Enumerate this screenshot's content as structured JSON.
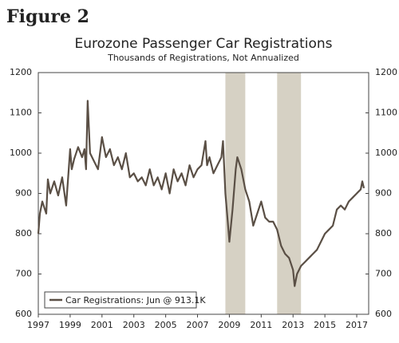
{
  "heading": "Figure 2",
  "chart_data": {
    "type": "line",
    "title": "Eurozone Passenger Car Registrations",
    "subtitle": "Thousands of Registrations, Not Annualized",
    "x": [
      1997.0,
      1997.1,
      1997.25,
      1997.5,
      1997.6,
      1997.75,
      1998.0,
      1998.25,
      1998.5,
      1998.75,
      1999.0,
      1999.1,
      1999.25,
      1999.5,
      1999.75,
      1999.9,
      2000.0,
      2000.1,
      2000.25,
      2000.5,
      2000.75,
      2001.0,
      2001.25,
      2001.5,
      2001.75,
      2002.0,
      2002.25,
      2002.5,
      2002.75,
      2003.0,
      2003.25,
      2003.5,
      2003.75,
      2004.0,
      2004.25,
      2004.5,
      2004.75,
      2005.0,
      2005.25,
      2005.5,
      2005.75,
      2006.0,
      2006.25,
      2006.5,
      2006.75,
      2007.0,
      2007.25,
      2007.5,
      2007.6,
      2007.75,
      2008.0,
      2008.25,
      2008.5,
      2008.6,
      2008.75,
      2008.9,
      2009.0,
      2009.2,
      2009.4,
      2009.5,
      2009.75,
      2010.0,
      2010.25,
      2010.5,
      2010.75,
      2011.0,
      2011.25,
      2011.5,
      2011.75,
      2012.0,
      2012.25,
      2012.5,
      2012.75,
      2013.0,
      2013.1,
      2013.25,
      2013.5,
      2013.75,
      2014.0,
      2014.25,
      2014.5,
      2014.75,
      2015.0,
      2015.25,
      2015.5,
      2015.75,
      2016.0,
      2016.25,
      2016.5,
      2016.75,
      2017.0,
      2017.25,
      2017.35,
      2017.45
    ],
    "series": [
      {
        "name": "Car Registrations: Jun @ 913.1K",
        "color": "#5a4f45",
        "values": [
          800,
          850,
          880,
          850,
          935,
          900,
          930,
          895,
          940,
          870,
          1010,
          960,
          985,
          1015,
          990,
          1010,
          960,
          1130,
          1000,
          980,
          960,
          1040,
          990,
          1010,
          970,
          990,
          960,
          1000,
          940,
          950,
          930,
          940,
          920,
          960,
          920,
          940,
          910,
          950,
          900,
          960,
          930,
          950,
          920,
          970,
          940,
          960,
          970,
          1030,
          970,
          990,
          950,
          970,
          990,
          1030,
          900,
          830,
          780,
          860,
          960,
          990,
          960,
          910,
          880,
          820,
          850,
          880,
          840,
          830,
          830,
          810,
          770,
          750,
          740,
          710,
          670,
          700,
          720,
          730,
          740,
          750,
          760,
          780,
          800,
          810,
          820,
          860,
          870,
          860,
          880,
          890,
          900,
          910,
          930,
          913.1
        ]
      }
    ],
    "shaded": [
      [
        2008.75,
        2010.0
      ],
      [
        2012.0,
        2013.5
      ]
    ],
    "shade_color": "#d6d1c4",
    "xlim": [
      1997,
      2017.75
    ],
    "xticks": [
      1997,
      1999,
      2001,
      2003,
      2005,
      2007,
      2009,
      2011,
      2013,
      2015,
      2017
    ],
    "ylim": [
      600,
      1200
    ],
    "yticks": [
      600,
      700,
      800,
      900,
      1000,
      1100,
      1200
    ],
    "y2lim": [
      600,
      1200
    ],
    "y2ticks": [
      600,
      700,
      800,
      900,
      1000,
      1100,
      1200
    ],
    "legend": "lower left"
  }
}
